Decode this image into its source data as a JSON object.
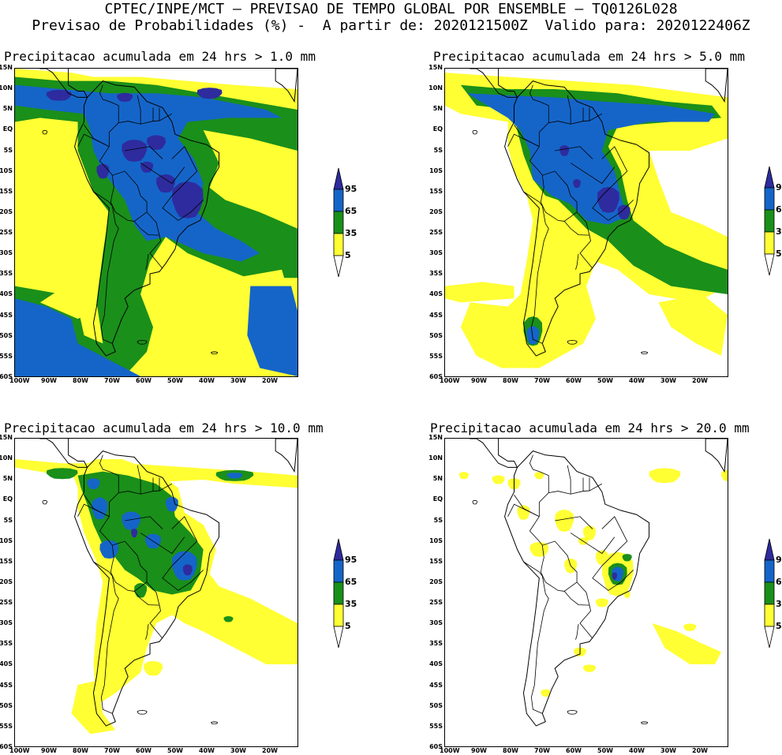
{
  "header": {
    "line1": "CPTEC/INPE/MCT — PREVISAO DE TEMPO GLOBAL POR ENSEMBLE — TQ0126L028",
    "line2": "Previsao de Probabilidades (%) -  A partir de: 2020121500Z  Valido para: 2020122406Z"
  },
  "axes": {
    "lat_ticks": [
      "15N",
      "10N",
      "5N",
      "EQ",
      "5S",
      "10S",
      "15S",
      "20S",
      "25S",
      "30S",
      "35S",
      "40S",
      "45S",
      "50S",
      "55S",
      "60S"
    ],
    "lon_ticks": [
      "100W",
      "90W",
      "80W",
      "70W",
      "60W",
      "50W",
      "40W",
      "30W",
      "20W"
    ]
  },
  "legend": {
    "labels": [
      "95",
      "65",
      "35",
      "5"
    ],
    "colors": {
      "c95": "#2e2b9e",
      "c65": "#1565c8",
      "c35": "#1a8f1a",
      "c5": "#ffff33"
    }
  },
  "panels": [
    {
      "id": "p1",
      "title": "Precipitacao acumulada em 24 hrs > 1.0 mm",
      "threshold_mm": 1.0
    },
    {
      "id": "p2",
      "title": "Precipitacao acumulada em 24 hrs > 5.0 mm",
      "threshold_mm": 5.0
    },
    {
      "id": "p3",
      "title": "Precipitacao acumulada em 24 hrs > 10.0 mm",
      "threshold_mm": 10.0
    },
    {
      "id": "p4",
      "title": "Precipitacao acumulada em 24 hrs > 20.0 mm",
      "threshold_mm": 20.0
    }
  ]
}
